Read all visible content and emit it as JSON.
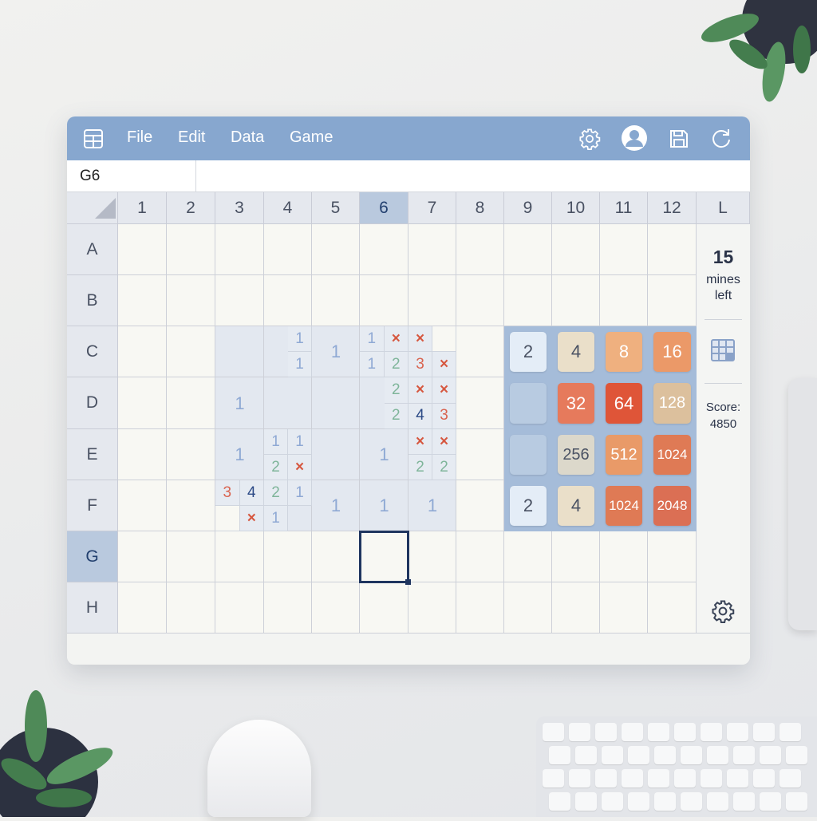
{
  "menu": {
    "app_icon": "spreadsheet-grid-icon",
    "items": [
      "File",
      "Edit",
      "Data",
      "Game"
    ],
    "toolbar_icons": [
      "gear-icon",
      "user-avatar-icon",
      "save-icon",
      "refresh-icon"
    ]
  },
  "formula_bar": {
    "name_box": "G6",
    "value": ""
  },
  "columns": [
    "1",
    "2",
    "3",
    "4",
    "5",
    "6",
    "7",
    "8",
    "9",
    "10",
    "11",
    "12",
    "L"
  ],
  "rows": [
    "A",
    "B",
    "C",
    "D",
    "E",
    "F",
    "G",
    "H"
  ],
  "selected_cell": {
    "row": "G",
    "column": "6"
  },
  "minesweeper": {
    "revealed_cells": [
      "C3",
      "C4",
      "C5",
      "C6",
      "C7",
      "D3",
      "D4",
      "D5",
      "D6",
      "D7",
      "E3",
      "E4",
      "E5",
      "E6",
      "E7",
      "F3",
      "F4",
      "F5",
      "F6",
      "F7"
    ],
    "big_numbers": {
      "C5": "1",
      "D3": "1",
      "E3": "1",
      "E6": "1",
      "F5": "1",
      "F6": "1",
      "F7": "1"
    },
    "sub_cells": [
      {
        "cell": "C4",
        "q": "tr",
        "v": "1"
      },
      {
        "cell": "C4",
        "q": "br",
        "v": "1"
      },
      {
        "cell": "C6",
        "q": "tl",
        "v": "1"
      },
      {
        "cell": "C6",
        "q": "tr",
        "v": "×"
      },
      {
        "cell": "C7",
        "q": "tl",
        "v": "×"
      },
      {
        "cell": "C7",
        "q": "tr",
        "v": "",
        "blank": true
      },
      {
        "cell": "C6",
        "q": "bl",
        "v": "1"
      },
      {
        "cell": "C6",
        "q": "br",
        "v": "2"
      },
      {
        "cell": "C7",
        "q": "bl",
        "v": "3"
      },
      {
        "cell": "C7",
        "q": "br",
        "v": "×"
      },
      {
        "cell": "D6",
        "q": "tr",
        "v": "2"
      },
      {
        "cell": "D7",
        "q": "tl",
        "v": "×"
      },
      {
        "cell": "D7",
        "q": "tr",
        "v": "×"
      },
      {
        "cell": "D6",
        "q": "br",
        "v": "2"
      },
      {
        "cell": "D7",
        "q": "bl",
        "v": "4"
      },
      {
        "cell": "D7",
        "q": "br",
        "v": "3"
      },
      {
        "cell": "E4",
        "q": "tl",
        "v": "1"
      },
      {
        "cell": "E4",
        "q": "tr",
        "v": "1"
      },
      {
        "cell": "E4",
        "q": "bl",
        "v": "2"
      },
      {
        "cell": "E4",
        "q": "br",
        "v": "×"
      },
      {
        "cell": "E7",
        "q": "tl",
        "v": "×"
      },
      {
        "cell": "E7",
        "q": "tr",
        "v": "×"
      },
      {
        "cell": "E7",
        "q": "bl",
        "v": "2"
      },
      {
        "cell": "E7",
        "q": "br",
        "v": "2"
      },
      {
        "cell": "F3",
        "q": "tl",
        "v": "3"
      },
      {
        "cell": "F3",
        "q": "tr",
        "v": "4"
      },
      {
        "cell": "F4",
        "q": "tl",
        "v": "2"
      },
      {
        "cell": "F4",
        "q": "tr",
        "v": "1"
      },
      {
        "cell": "F3",
        "q": "bl",
        "v": "",
        "blank": true
      },
      {
        "cell": "F3",
        "q": "br",
        "v": "×"
      },
      {
        "cell": "F4",
        "q": "bl",
        "v": "1"
      }
    ],
    "number_colors": {
      "1": "#8fa9d4",
      "2": "#7fb59a",
      "3": "#d9634f",
      "4": "#2c4a86",
      "×": "#d6573f"
    }
  },
  "game2048": {
    "tiles": [
      [
        "2",
        "4",
        "8",
        "16"
      ],
      [
        "",
        "32",
        "64",
        "128"
      ],
      [
        "",
        "256",
        "512",
        "1024"
      ],
      [
        "2",
        "4",
        "1024",
        "2048"
      ]
    ],
    "tile_colors": {
      "": "#b8cbe1",
      "2": "#e4edf7",
      "4": "#eadfc9",
      "8": "#efb07f",
      "16": "#eb9968",
      "32": "#e67a5c",
      "64": "#df5538",
      "128": "#dcc09d",
      "256": "#dcd8cb",
      "512": "#e99a68",
      "1024": "#df7a55",
      "2048": "#db6f54"
    }
  },
  "side_panel": {
    "mines_count": "15",
    "mines_label_1": "mines",
    "mines_label_2": "left",
    "score_label": "Score:",
    "score_value": "4850",
    "icons": [
      "mini-grid-icon",
      "gear-icon"
    ]
  },
  "colors": {
    "menubar": "#87a7cf",
    "selection": "#1f355f"
  }
}
